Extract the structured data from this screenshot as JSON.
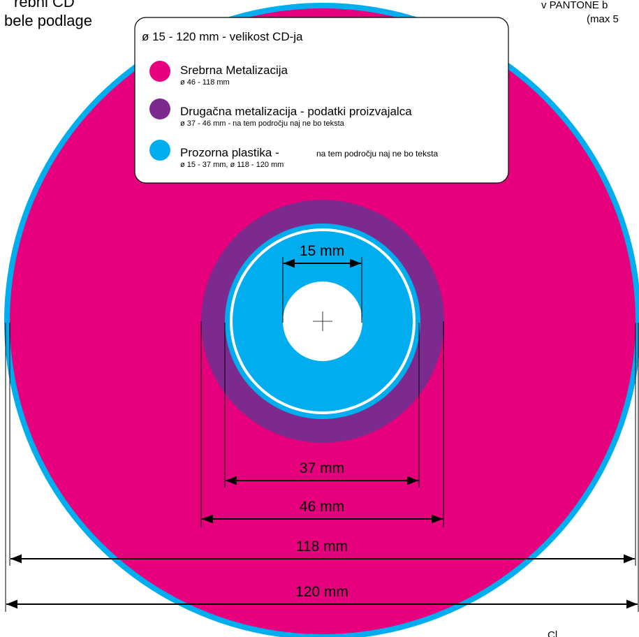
{
  "corner_texts": {
    "top_left_1": "rebni CD",
    "top_left_2": "bele podlage",
    "top_right_1": "v PANTONE b",
    "top_right_2": "(max 5",
    "bottom_right": "Cl"
  },
  "legend": {
    "heading": "ø 15 - 120 mm - velikost CD-ja",
    "items": [
      {
        "title": "Srebrna Metalizacija",
        "detail": "ø 46 - 118 mm"
      },
      {
        "title": "Drugačna metalizacija - podatki proizvajalca",
        "detail": "ø 37 -  46 mm - na tem področju naj ne bo teksta"
      },
      {
        "title": "Prozorna plastika -",
        "note": "na tem področju naj ne bo teksta",
        "detail": "ø 15 - 37 mm, ø 118 - 120 mm"
      }
    ]
  },
  "dimensions": [
    "15 mm",
    "37 mm",
    "46 mm",
    "118 mm",
    "120 mm"
  ]
}
